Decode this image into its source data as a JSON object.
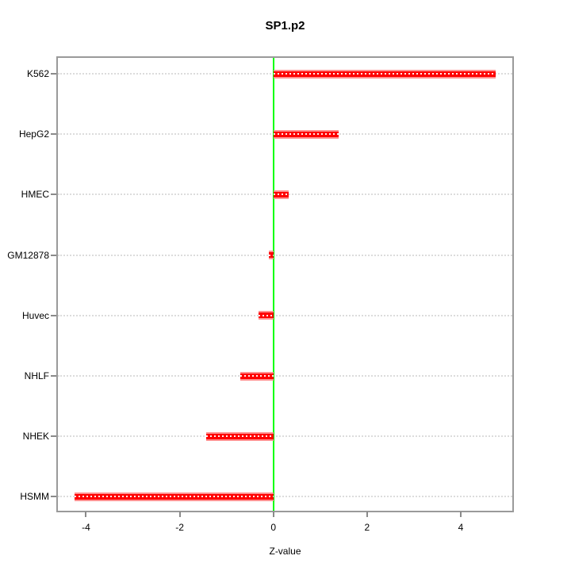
{
  "chart_data": {
    "type": "bar",
    "orientation": "horizontal",
    "title": "SP1.p2",
    "xlabel": "Z-value",
    "categories": [
      "K562",
      "HepG2",
      "HMEC",
      "GM12878",
      "Huvec",
      "NHLF",
      "NHEK",
      "HSMM"
    ],
    "values": [
      4.75,
      1.4,
      0.33,
      -0.1,
      -0.31,
      -0.7,
      -1.44,
      -4.25
    ],
    "xlim": [
      -4.6,
      5.1
    ],
    "xticks": [
      -4,
      -2,
      0,
      2,
      4
    ],
    "grid": "horizontal-dotted",
    "legend": null,
    "colors": {
      "bar": "#ff0000",
      "bar_edge": "#ff9191",
      "bar_dots": "#ffffff",
      "zero_line": "#00ff00",
      "gridline": "#dcdcdc",
      "box": "#9a9a9a",
      "tick": "#8a8a8a",
      "text": "#000000"
    }
  }
}
